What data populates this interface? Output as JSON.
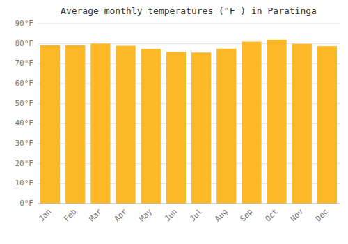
{
  "chart_data": {
    "type": "bar",
    "title": "Average monthly temperatures (°F ) in Paratinga",
    "categories": [
      "Jan",
      "Feb",
      "Mar",
      "Apr",
      "May",
      "Jun",
      "Jul",
      "Aug",
      "Sep",
      "Oct",
      "Nov",
      "Dec"
    ],
    "values": [
      79.2,
      79.2,
      80.1,
      79.0,
      77.4,
      75.9,
      75.6,
      77.5,
      81.1,
      82.0,
      80.0,
      78.8
    ],
    "color": "#FDB827",
    "ylim": [
      0,
      90
    ],
    "yticks": [
      {
        "value": 0,
        "label": "0°F"
      },
      {
        "value": 10,
        "label": "10°F"
      },
      {
        "value": 20,
        "label": "20°F"
      },
      {
        "value": 30,
        "label": "30°F"
      },
      {
        "value": 40,
        "label": "40°F"
      },
      {
        "value": 50,
        "label": "50°F"
      },
      {
        "value": 60,
        "label": "60°F"
      },
      {
        "value": 70,
        "label": "70°F"
      },
      {
        "value": 80,
        "label": "80°F"
      },
      {
        "value": 90,
        "label": "90°F"
      }
    ],
    "grid": true
  }
}
